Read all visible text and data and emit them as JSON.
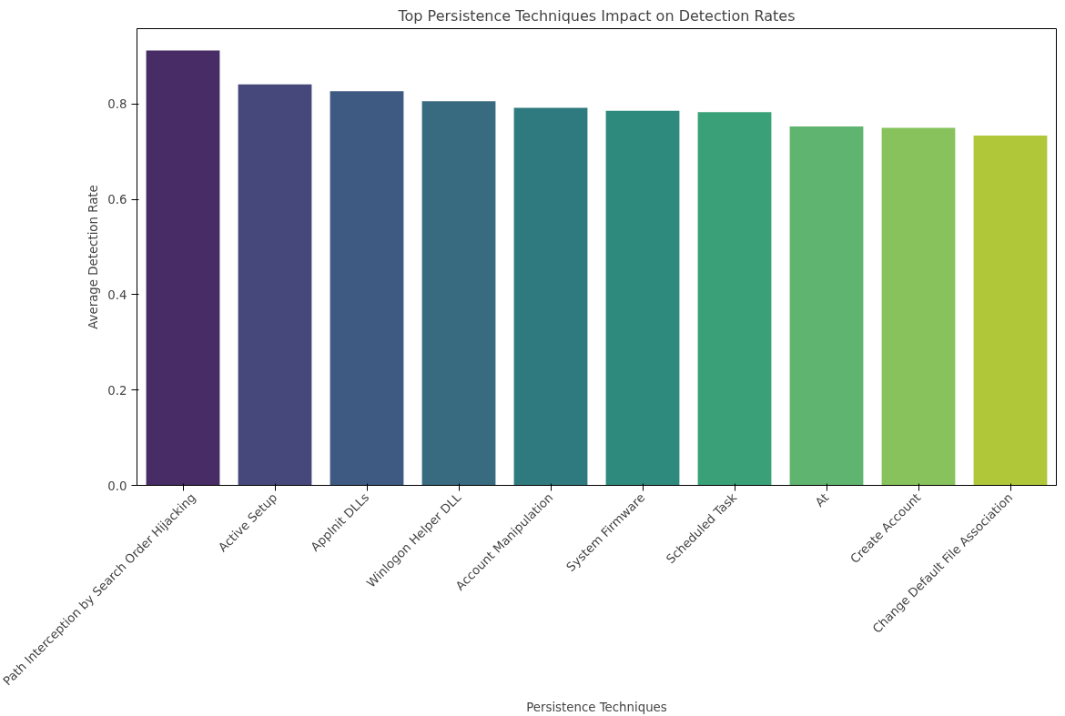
{
  "chart_data": {
    "type": "bar",
    "title": "Top Persistence Techniques Impact on Detection Rates",
    "xlabel": "Persistence Techniques",
    "ylabel": "Average Detection Rate",
    "categories": [
      "Path Interception by Search Order Hijacking",
      "Active Setup",
      "AppInit DLLs",
      "Winlogon Helper DLL",
      "Account Manipulation",
      "System Firmware",
      "Scheduled Task",
      "At",
      "Create Account",
      "Change Default File Association"
    ],
    "values": [
      0.912,
      0.841,
      0.827,
      0.806,
      0.792,
      0.786,
      0.783,
      0.753,
      0.75,
      0.734
    ],
    "colors": [
      "#472c65",
      "#46477a",
      "#3e5a82",
      "#386a80",
      "#2f7a7f",
      "#2d8a7c",
      "#3aa077",
      "#5fb46f",
      "#87c25c",
      "#b0c73a"
    ],
    "ylim": [
      0,
      0.958
    ],
    "yticks": [
      {
        "value": 0,
        "label": "0.0"
      },
      {
        "value": 0.2,
        "label": "0.2"
      },
      {
        "value": 0.4,
        "label": "0.4"
      },
      {
        "value": 0.6,
        "label": "0.6"
      },
      {
        "value": 0.8,
        "label": "0.8"
      }
    ],
    "grid": false
  }
}
